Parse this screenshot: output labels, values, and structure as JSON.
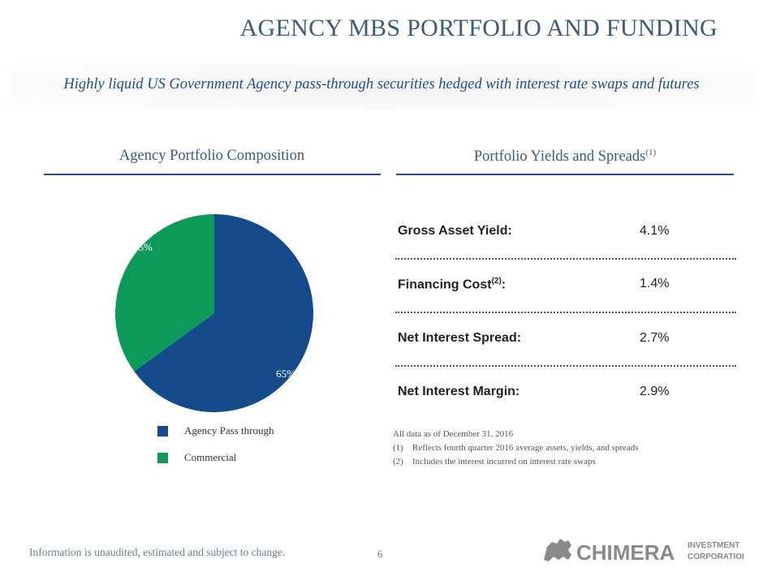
{
  "header": {
    "title": "AGENCY MBS PORTFOLIO AND FUNDING",
    "subtitle": "Highly liquid US Government Agency pass-through securities hedged with interest rate swaps and futures"
  },
  "left_section": {
    "heading": "Agency Portfolio Composition"
  },
  "right_section": {
    "heading": "Portfolio Yields and Spreads",
    "heading_sup": "(1)"
  },
  "chart_data": {
    "type": "pie",
    "title": "Agency Portfolio Composition",
    "categories": [
      "Agency Pass through",
      "Commercial"
    ],
    "values": [
      65,
      35
    ],
    "labels": [
      "65%",
      "35%"
    ],
    "colors": [
      "#154b8a",
      "#0c995a"
    ],
    "legend_position": "bottom"
  },
  "metrics": [
    {
      "label": "Gross Asset Yield:",
      "sup": "",
      "value": "4.1%"
    },
    {
      "label": "Financing Cost",
      "sup": "(2)",
      "suffix": ":",
      "value": "1.4%"
    },
    {
      "label": "Net Interest Spread:",
      "sup": "",
      "value": "2.7%"
    },
    {
      "label": "Net Interest Margin:",
      "sup": "",
      "value": "2.9%"
    }
  ],
  "notes": {
    "as_of": "All data as of December 31, 2016",
    "items": [
      {
        "num": "(1)",
        "text": "Reflects fourth quarter 2016 average assets, yields, and spreads"
      },
      {
        "num": "(2)",
        "text": "Includes the interest incurred on interest rate swaps"
      }
    ]
  },
  "footer": {
    "disclaimer": "Information is unaudited, estimated and subject to change.",
    "page_number": "6"
  },
  "logo": {
    "brand": "CHIMERA",
    "line1": "INVESTMENT",
    "line2": "CORPORATION",
    "icon": "chimera-beast-icon"
  }
}
